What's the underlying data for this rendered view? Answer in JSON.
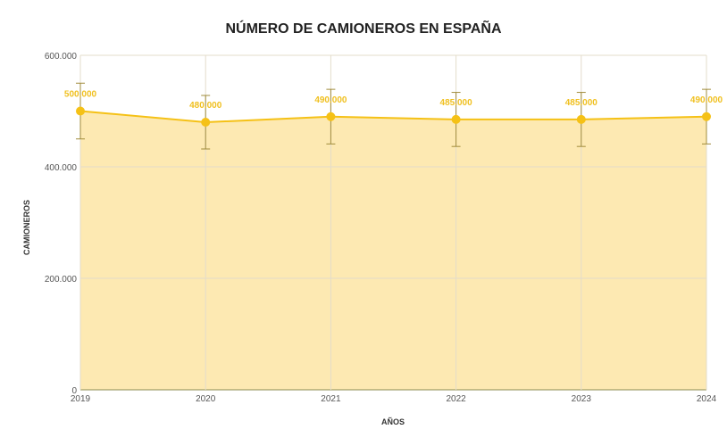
{
  "chart_data": {
    "type": "area",
    "title": "NÚMERO DE CAMIONEROS EN ESPAÑA",
    "xlabel": "AÑOS",
    "ylabel": "CAMIONEROS",
    "categories": [
      "2019",
      "2020",
      "2021",
      "2022",
      "2023",
      "2024"
    ],
    "values": [
      500000,
      480000,
      490000,
      485000,
      485000,
      490000
    ],
    "data_labels": [
      "500.000",
      "480.000",
      "490.000",
      "485.000",
      "485.000",
      "490.000"
    ],
    "error_bars": [
      50000,
      48000,
      49000,
      48500,
      48500,
      49000
    ],
    "ylim": [
      0,
      600000
    ],
    "yticks": [
      0,
      200000,
      400000,
      600000
    ],
    "ytick_labels": [
      "0",
      "200.000",
      "400.000",
      "600.000"
    ],
    "grid": true,
    "colors": {
      "line": "#f5c116",
      "fill": "#fde9b2",
      "grid": "#e3dccb",
      "error": "#a08c3c"
    }
  }
}
